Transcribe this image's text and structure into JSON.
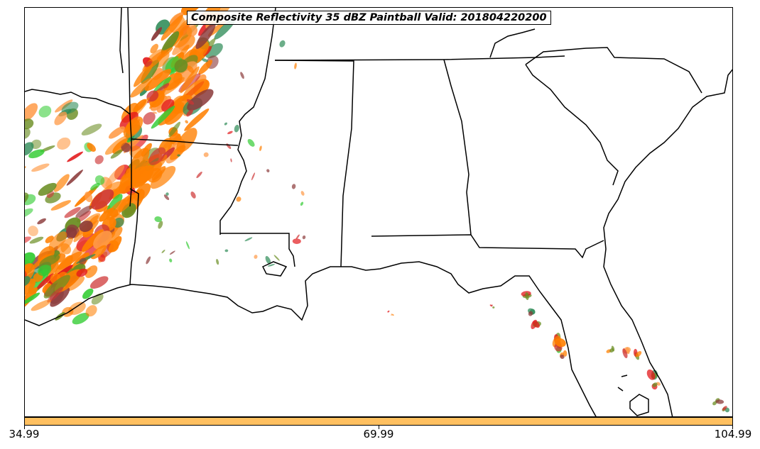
{
  "title": "Composite Reflectivity 35 dBZ Paintball Valid: 201804220200",
  "colorbar": {
    "color": "#ffc060",
    "tick_labels": [
      "34.99",
      "69.99",
      "104.99"
    ]
  },
  "colors": {
    "member_palette": [
      "#ff7f00",
      "#e31a1c",
      "#33cc33",
      "#8b3a3a",
      "#6b8e23",
      "#ff9944",
      "#2e8b57",
      "#cd3333"
    ],
    "boundary": "#000000"
  }
}
